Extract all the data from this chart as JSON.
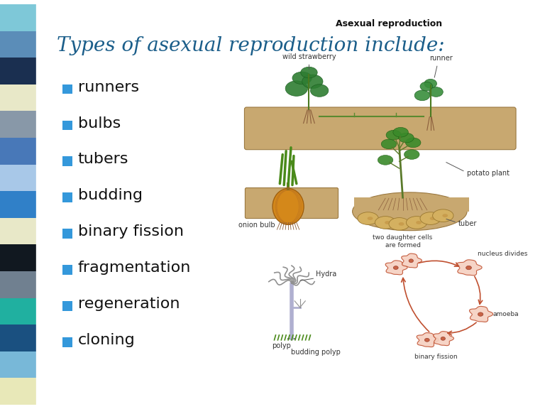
{
  "title": "Types of asexual reproduction include:",
  "title_color": "#1b5e8a",
  "title_fontsize": 20,
  "background_color": "#ffffff",
  "bullet_items": [
    "runners",
    "bulbs",
    "tubers",
    "budding",
    "binary fission",
    "fragmentation",
    "regeneration",
    "cloning"
  ],
  "bullet_color": "#3498db",
  "bullet_fontsize": 16,
  "sidebar_colors": [
    "#7ec8d8",
    "#5b8db8",
    "#1a2f50",
    "#e8e8c8",
    "#8898a8",
    "#4878b8",
    "#a8c8e8",
    "#3080c8",
    "#e8e8c8",
    "#111820",
    "#708090",
    "#20b0a0",
    "#1a5080",
    "#78b8d8",
    "#e8e8b8"
  ],
  "diagram_title": "Asexual reproduction",
  "figsize": [
    7.68,
    5.76
  ],
  "dpi": 100
}
